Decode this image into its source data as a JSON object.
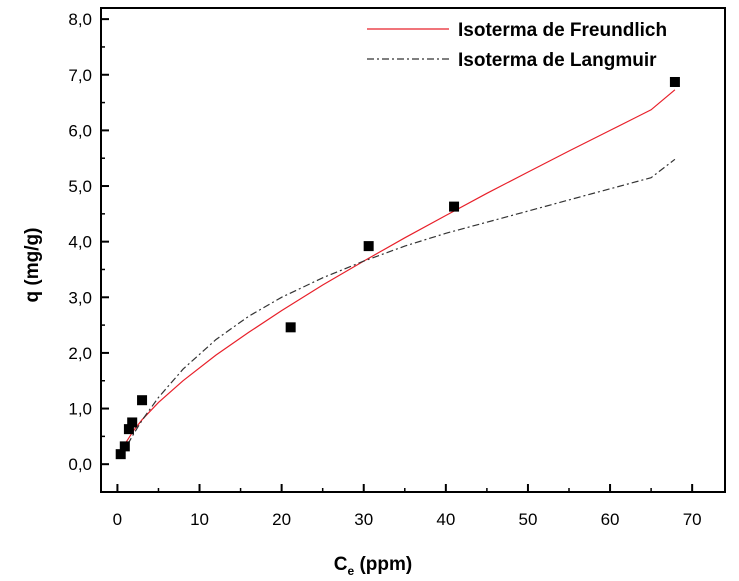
{
  "chart_data": {
    "type": "scatter",
    "xlabel": "C",
    "xlabel_sub": "e",
    "xlabel_unit": " (ppm)",
    "ylabel": "q (mg/g)",
    "xlim": [
      -2,
      74
    ],
    "ylim": [
      -0.5,
      8.2
    ],
    "x_ticks": [
      0,
      10,
      20,
      30,
      40,
      50,
      60,
      70
    ],
    "x_tick_labels": [
      "0",
      "10",
      "20",
      "30",
      "40",
      "50",
      "60",
      "70"
    ],
    "y_ticks": [
      0,
      1,
      2,
      3,
      4,
      5,
      6,
      7,
      8
    ],
    "y_tick_labels": [
      "0,0",
      "1,0",
      "2,0",
      "3,0",
      "4,0",
      "5,0",
      "6,0",
      "7,0",
      "8,0"
    ],
    "grid": false,
    "legend_position": "top-right",
    "points": {
      "x": [
        0.4,
        0.9,
        1.4,
        1.8,
        3.0,
        21.1,
        30.6,
        41.0,
        67.9
      ],
      "y": [
        0.18,
        0.32,
        0.63,
        0.75,
        1.15,
        2.46,
        3.92,
        4.63,
        6.87
      ]
    },
    "series": [
      {
        "name": "Isoterma de Freundlich",
        "style": "solid",
        "color": "#e8202a",
        "x": [
          0.4,
          1,
          2,
          3,
          5,
          8,
          12,
          16,
          20,
          25,
          30,
          35,
          40,
          45,
          50,
          55,
          60,
          65,
          67.9
        ],
        "y": [
          0.2,
          0.38,
          0.61,
          0.8,
          1.11,
          1.5,
          1.96,
          2.37,
          2.76,
          3.22,
          3.65,
          4.07,
          4.47,
          4.87,
          5.25,
          5.63,
          6.0,
          6.37,
          6.73
        ]
      },
      {
        "name": "Isoterma de Langmuir",
        "style": "dash-dot",
        "color": "#333333",
        "x": [
          0.4,
          1,
          2,
          3,
          5,
          8,
          12,
          16,
          20,
          25,
          30,
          35,
          40,
          45,
          50,
          55,
          60,
          65,
          67.9
        ],
        "y": [
          0.12,
          0.29,
          0.55,
          0.79,
          1.2,
          1.71,
          2.24,
          2.66,
          3.0,
          3.35,
          3.65,
          3.92,
          4.15,
          4.35,
          4.55,
          4.75,
          4.95,
          5.15,
          5.48
        ]
      }
    ]
  }
}
